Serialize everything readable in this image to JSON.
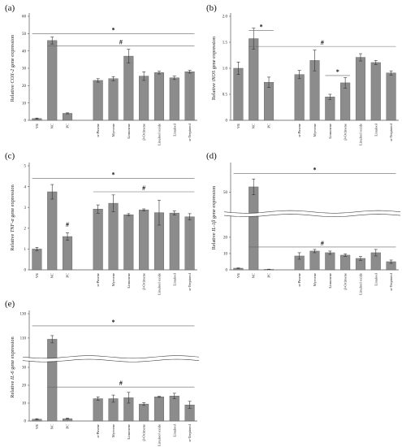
{
  "chart_data": [
    {
      "panel": "(a)",
      "type": "bar",
      "ylabel_prefix": "Relative ",
      "ylabel_gene": "COX-2",
      "ylabel_suffix": " gene expression",
      "yticks": [
        "0",
        "10",
        "20",
        "30",
        "40",
        "50",
        "60"
      ],
      "ylim": [
        0,
        60
      ],
      "categories": [
        "VE",
        "NC",
        "PC",
        "α-Pinene",
        "Myrcene",
        "Limonene",
        "β-Ocimene",
        "Linalool oxide",
        "Linalool",
        "α-Terpineol"
      ],
      "values": [
        1,
        46,
        4,
        23,
        24,
        37,
        25.5,
        27.5,
        24.5,
        28
      ],
      "errors": [
        0.3,
        2,
        0.3,
        1,
        1.2,
        4,
        2.5,
        0.8,
        1,
        0.8
      ],
      "annotations": [
        {
          "text": "*",
          "from": 0,
          "to": 9,
          "y": 50
        },
        {
          "text": "#",
          "from": 1,
          "to": 9,
          "y": 43
        }
      ]
    },
    {
      "panel": "(b)",
      "type": "bar",
      "ylabel_prefix": "Relative ",
      "ylabel_gene": "iNOS",
      "ylabel_suffix": " gene expression",
      "yticks": [
        "0",
        "0.5",
        "1.0",
        "1.5",
        "2.0"
      ],
      "ylim": [
        0,
        2.0
      ],
      "categories": [
        "VE",
        "NC",
        "PC",
        "α-Pinene",
        "Myrcene",
        "Limonene",
        "β-Ocimene",
        "Linalool oxide",
        "Linalool",
        "α-Terpineol"
      ],
      "values": [
        1.0,
        1.57,
        0.73,
        0.88,
        1.15,
        0.45,
        0.72,
        1.21,
        1.11,
        0.91
      ],
      "errors": [
        0.12,
        0.2,
        0.1,
        0.08,
        0.2,
        0.05,
        0.1,
        0.07,
        0.04,
        0.04
      ],
      "annotations": [
        {
          "text": "*",
          "from": 1,
          "to": 2,
          "y": 1.73
        },
        {
          "text": "#",
          "from": 1,
          "to": 9,
          "y": 1.42
        },
        {
          "text": "*",
          "from": 5,
          "to": 6,
          "y": 0.86
        }
      ]
    },
    {
      "panel": "(c)",
      "type": "bar",
      "ylabel_prefix": "Relative ",
      "ylabel_gene": "TNF-α",
      "ylabel_suffix": " gene expression",
      "yticks": [
        "0",
        "1",
        "2",
        "3",
        "4",
        "5"
      ],
      "ylim": [
        0,
        5
      ],
      "categories": [
        "VE",
        "NC",
        "PC",
        "α-Pinene",
        "Myrcene",
        "Limonene",
        "β-Ocimene",
        "Linalool oxide",
        "Linalool",
        "α-Terpineol"
      ],
      "values": [
        1.0,
        3.75,
        1.6,
        2.92,
        3.2,
        2.65,
        2.88,
        2.75,
        2.73,
        2.55
      ],
      "errors": [
        0.08,
        0.35,
        0.18,
        0.2,
        0.4,
        0.05,
        0.05,
        0.6,
        0.1,
        0.15
      ],
      "annotations": [
        {
          "text": "*",
          "from": 0,
          "to": 9,
          "y": 4.4
        },
        {
          "text": "#",
          "from": 3,
          "to": 9,
          "y": 3.75
        },
        {
          "text": "#",
          "bar": 2,
          "y": 2.0
        }
      ]
    },
    {
      "panel": "(d)",
      "type": "bar",
      "axis_break": true,
      "ylabel_prefix": "Relative ",
      "ylabel_gene": "IL-1β",
      "ylabel_suffix": " gene expression",
      "yticks": [
        "0",
        "10",
        "20",
        "50"
      ],
      "ylim": [
        0,
        60
      ],
      "categories": [
        "VE",
        "NC",
        "PC",
        "α-Pinene",
        "Myrcene",
        "Limonene",
        "β-Ocimene",
        "Linalool oxide",
        "Linalool",
        "α-Terpineol"
      ],
      "values": [
        1,
        52,
        0.3,
        8.5,
        11.5,
        10.5,
        9,
        7,
        10.5,
        5
      ],
      "errors": [
        0.2,
        3,
        0.1,
        2,
        1,
        1,
        0.8,
        1.2,
        2,
        1
      ],
      "annotations": [
        {
          "text": "*",
          "from": 0,
          "to": 9,
          "y": 57
        },
        {
          "text": "#",
          "from": 1,
          "to": 9,
          "y": 14
        }
      ]
    },
    {
      "panel": "(e)",
      "type": "bar",
      "axis_break": true,
      "ylabel_prefix": "Relative ",
      "ylabel_gene": "IL-6",
      "ylabel_suffix": " gene expression",
      "yticks": [
        "0",
        "10",
        "20",
        "30",
        "110",
        "130"
      ],
      "ylim": [
        0,
        130
      ],
      "categories": [
        "VE",
        "NC",
        "PC",
        "α-Pinene",
        "Myrcene",
        "Limonene",
        "β-Ocimene",
        "Linalool oxide",
        "Linalool",
        "α-Terpineol"
      ],
      "values": [
        1,
        109,
        1.3,
        12.5,
        12.5,
        13,
        9.5,
        13.5,
        14,
        9
      ],
      "errors": [
        0.3,
        3,
        0.3,
        1,
        2,
        3,
        0.8,
        0.3,
        1.5,
        2
      ],
      "annotations": [
        {
          "text": "*",
          "from": 0,
          "to": 9,
          "y": 120
        },
        {
          "text": "#",
          "from": 1,
          "to": 9,
          "y": 19
        }
      ]
    }
  ]
}
